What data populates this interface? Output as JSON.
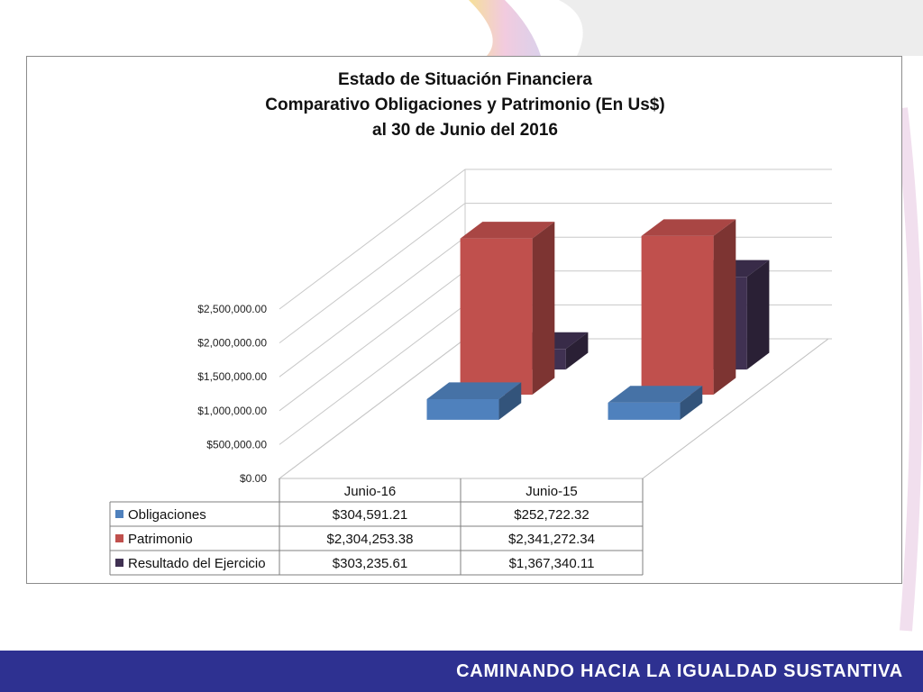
{
  "footer": {
    "text": "CAMINANDO HACIA LA IGUALDAD SUSTANTIVA"
  },
  "colors": {
    "obligaciones": "#4f81bd",
    "patrimonio": "#c0504d",
    "resultado": "#403152",
    "footer": "#2e3191"
  },
  "chart_data": {
    "type": "bar",
    "title_lines": [
      "Estado de Situación Financiera",
      "Comparativo Obligaciones y Patrimonio (En Us$)",
      "al 30 de Junio del 2016"
    ],
    "categories": [
      "Junio-16",
      "Junio-15"
    ],
    "series": [
      {
        "name": "Obligaciones",
        "values": [
          304591.21,
          252722.32
        ],
        "labels": [
          "$304,591.21",
          "$252,722.32"
        ],
        "color": "#4f81bd"
      },
      {
        "name": "Patrimonio",
        "values": [
          2304253.38,
          2341272.34
        ],
        "labels": [
          "$2,304,253.38",
          "$2,341,272.34"
        ],
        "color": "#c0504d"
      },
      {
        "name": "Resultado del Ejercicio",
        "values": [
          303235.61,
          1367340.11
        ],
        "labels": [
          "$303,235.61",
          "$1,367,340.11"
        ],
        "color": "#403152"
      }
    ],
    "ylim": [
      0,
      2500000
    ],
    "yticks": [
      0,
      500000,
      1000000,
      1500000,
      2000000,
      2500000
    ],
    "ytick_labels": [
      "$0.00",
      "$500,000.00",
      "$1,000,000.00",
      "$1,500,000.00",
      "$2,000,000.00",
      "$2,500,000.00"
    ],
    "grid": true,
    "style": "3d-column",
    "legend": "data-table"
  }
}
